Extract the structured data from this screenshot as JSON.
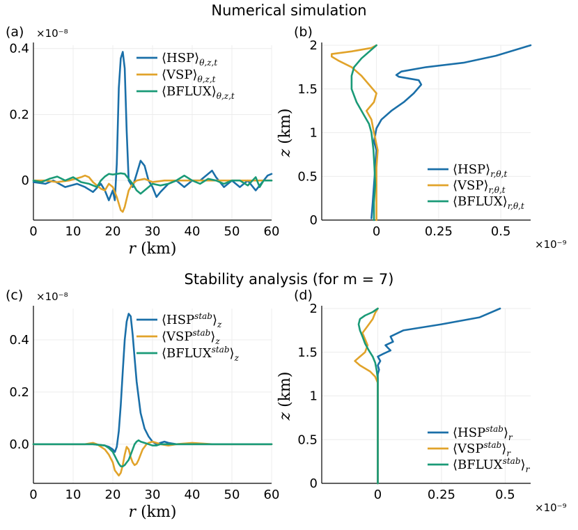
{
  "figure": {
    "top_title": "Numerical simulation",
    "bottom_title": "Stability analysis (for m = 7)"
  },
  "colors": {
    "hsp": "#1a6fa8",
    "vsp": "#e1a32a",
    "bflux": "#1a9a77"
  },
  "chart_data": [
    {
      "panel": "(a)",
      "type": "line",
      "multiplier": "×10⁻⁸",
      "xlabel": "r (km)",
      "ylabel": "",
      "xlim": [
        0,
        60
      ],
      "ylim": [
        -0.12,
        0.41
      ],
      "xticks": [
        0,
        10,
        20,
        30,
        40,
        50,
        60
      ],
      "xtick_labels": [
        "0",
        "10",
        "20",
        "30",
        "40",
        "50",
        "60"
      ],
      "yticks": [
        0,
        0.2,
        0.4
      ],
      "ytick_labels": [
        "0",
        "0.2",
        "0.4"
      ],
      "legend_position": "top-right",
      "series": [
        {
          "name": "⟨HSP⟩θ,z,t",
          "color": "hsp",
          "x": [
            0,
            3,
            5,
            8,
            11,
            13,
            15,
            17,
            18,
            19,
            20,
            20.5,
            21,
            21.5,
            22,
            22.5,
            23,
            23.5,
            24,
            25,
            26,
            27,
            28,
            29,
            30,
            31,
            32,
            34,
            36,
            38,
            40,
            42,
            44,
            45,
            46,
            48,
            50,
            52,
            54,
            56,
            58,
            59,
            60
          ],
          "y": [
            -0.005,
            -0.01,
            0.0,
            -0.02,
            -0.01,
            -0.02,
            -0.035,
            -0.01,
            -0.03,
            -0.06,
            -0.03,
            -0.06,
            0.05,
            0.28,
            0.37,
            0.39,
            0.34,
            0.15,
            0.0,
            -0.02,
            0.02,
            0.06,
            0.045,
            0.0,
            -0.02,
            -0.05,
            -0.035,
            -0.01,
            0.0,
            -0.02,
            0.0,
            0.0,
            0.02,
            0.03,
            0.01,
            -0.02,
            0.0,
            -0.02,
            0.0,
            -0.03,
            0.0,
            0.015,
            0.02
          ]
        },
        {
          "name": "⟨VSP⟩θ,z,t",
          "color": "vsp",
          "x": [
            0,
            3,
            6,
            9,
            12,
            13,
            14,
            15,
            17,
            18,
            19,
            20,
            21,
            22,
            22.5,
            23,
            24,
            25,
            26,
            28,
            30,
            33,
            36,
            40,
            45,
            50,
            55,
            60
          ],
          "y": [
            0.0,
            0.0,
            -0.005,
            0.0,
            0.01,
            0.015,
            0.01,
            -0.005,
            -0.025,
            -0.03,
            -0.01,
            -0.02,
            -0.05,
            -0.09,
            -0.095,
            -0.08,
            -0.03,
            -0.01,
            0.0,
            0.005,
            -0.005,
            0.0,
            0.0,
            0.0,
            0.0,
            0.0,
            0.0,
            0.0
          ]
        },
        {
          "name": "⟨BFLUX⟩θ,z,t",
          "color": "bflux",
          "x": [
            0,
            2,
            4,
            6,
            8,
            10,
            12,
            14,
            16,
            17,
            18,
            19,
            20,
            21,
            22,
            23,
            24,
            25,
            26,
            27,
            28,
            29,
            30,
            32,
            34,
            36,
            38,
            40,
            42,
            44,
            46,
            48,
            50,
            52,
            54,
            56,
            57,
            58,
            60
          ],
          "y": [
            0.0,
            -0.005,
            0.005,
            0.012,
            0.0,
            0.01,
            -0.005,
            -0.01,
            -0.02,
            0.0,
            0.012,
            0.02,
            0.018,
            0.02,
            0.022,
            0.02,
            0.005,
            -0.01,
            -0.03,
            -0.04,
            -0.03,
            -0.02,
            -0.01,
            -0.015,
            -0.01,
            0.0,
            0.015,
            0.0,
            -0.01,
            0.005,
            0.0,
            -0.01,
            0.0,
            0.0,
            -0.015,
            0.01,
            -0.02,
            0.0,
            0.0
          ]
        }
      ]
    },
    {
      "panel": "(b)",
      "type": "line",
      "multiplier": "×10⁻⁹",
      "xlabel": "",
      "ylabel": "z (km)",
      "xlim": [
        -0.22,
        0.62
      ],
      "ylim": [
        0,
        2
      ],
      "xticks": [
        0,
        0.25,
        0.5
      ],
      "xtick_labels": [
        "0",
        "0.25",
        "0.5"
      ],
      "yticks": [
        0,
        0.5,
        1,
        1.5,
        2
      ],
      "ytick_labels": [
        "0",
        "0.5",
        "1",
        "1.5",
        "2"
      ],
      "legend_position": "bottom-right",
      "series": [
        {
          "name": "⟨HSP⟩r,θ,t",
          "color": "hsp",
          "x": [
            -0.02,
            -0.015,
            -0.01,
            -0.005,
            0.0,
            -0.01,
            0.0,
            0.02,
            0.06,
            0.11,
            0.15,
            0.18,
            0.17,
            0.13,
            0.09,
            0.08,
            0.1,
            0.2,
            0.35,
            0.48,
            0.62
          ],
          "y": [
            0.02,
            0.2,
            0.4,
            0.6,
            0.8,
            0.9,
            1.05,
            1.15,
            1.25,
            1.35,
            1.45,
            1.55,
            1.6,
            1.62,
            1.64,
            1.66,
            1.7,
            1.75,
            1.8,
            1.88,
            2.0
          ]
        },
        {
          "name": "⟨VSP⟩r,θ,t",
          "color": "vsp",
          "x": [
            0.0,
            0.0,
            0.0,
            0.0,
            0.005,
            -0.01,
            -0.02,
            -0.04,
            -0.01,
            0.0,
            -0.03,
            -0.06,
            -0.1,
            -0.15,
            -0.18,
            -0.18,
            -0.1,
            -0.02,
            0.0
          ],
          "y": [
            0.0,
            0.2,
            0.4,
            0.6,
            0.8,
            1.0,
            1.15,
            1.25,
            1.35,
            1.45,
            1.55,
            1.65,
            1.75,
            1.82,
            1.87,
            1.9,
            1.93,
            1.97,
            2.0
          ]
        },
        {
          "name": "⟨BFLUX⟩r,θ,t",
          "color": "bflux",
          "x": [
            -0.01,
            -0.01,
            -0.005,
            -0.008,
            -0.012,
            -0.02,
            -0.03,
            -0.05,
            -0.08,
            -0.1,
            -0.1,
            -0.09,
            -0.06,
            -0.02,
            0.0
          ],
          "y": [
            0.0,
            0.2,
            0.4,
            0.6,
            0.8,
            1.0,
            1.1,
            1.2,
            1.35,
            1.5,
            1.65,
            1.75,
            1.85,
            1.95,
            2.0
          ]
        }
      ]
    },
    {
      "panel": "(c)",
      "type": "line",
      "multiplier": "×10⁻⁸",
      "xlabel": "r (km)",
      "ylabel": "",
      "xlim": [
        0,
        60
      ],
      "ylim": [
        -0.15,
        0.52
      ],
      "xticks": [
        0,
        10,
        20,
        30,
        40,
        50,
        60
      ],
      "xtick_labels": [
        "0",
        "10",
        "20",
        "30",
        "40",
        "50",
        "60"
      ],
      "yticks": [
        0,
        0.2,
        0.4
      ],
      "ytick_labels": [
        "0.0",
        "0.2",
        "0.4"
      ],
      "legend_position": "top-right",
      "series": [
        {
          "name": "⟨HSP^stab⟩z",
          "color": "hsp",
          "x": [
            0,
            10,
            15,
            18,
            19,
            20,
            20.5,
            21,
            21.5,
            22,
            22.5,
            23,
            23.5,
            24,
            24.5,
            25,
            25.5,
            26,
            27,
            28,
            29,
            30,
            31,
            32,
            33,
            34,
            36,
            40,
            50,
            60
          ],
          "y": [
            0,
            0,
            0,
            -0.005,
            -0.01,
            -0.02,
            -0.03,
            -0.01,
            0.05,
            0.15,
            0.28,
            0.4,
            0.47,
            0.5,
            0.49,
            0.42,
            0.33,
            0.24,
            0.12,
            0.06,
            0.03,
            0.01,
            0.0,
            0.005,
            0.01,
            0.005,
            0.0,
            0.0,
            0.0,
            0.0
          ]
        },
        {
          "name": "⟨VSP^stab⟩z",
          "color": "vsp",
          "x": [
            0,
            10,
            13,
            15,
            16,
            17,
            18,
            19,
            20,
            20.5,
            21,
            21.5,
            22,
            22.5,
            23,
            23.5,
            24,
            24.5,
            25,
            25.5,
            26,
            26.5,
            27,
            27.5,
            28,
            28.5,
            29,
            30,
            31,
            32,
            34,
            36,
            40,
            45,
            50,
            60
          ],
          "y": [
            0,
            0,
            0.0,
            0.005,
            0.0,
            -0.01,
            -0.02,
            -0.04,
            -0.07,
            -0.1,
            -0.11,
            -0.12,
            -0.11,
            -0.08,
            -0.04,
            -0.01,
            -0.02,
            -0.05,
            -0.07,
            -0.08,
            -0.075,
            -0.06,
            -0.04,
            -0.02,
            -0.01,
            0.0,
            0.005,
            0.01,
            0.005,
            0.0,
            -0.005,
            0.0,
            0.005,
            0.0,
            0.0,
            0.0
          ]
        },
        {
          "name": "⟨BFLUX^stab⟩z",
          "color": "bflux",
          "x": [
            0,
            15,
            18,
            19,
            20,
            20.5,
            21,
            21.5,
            22,
            22.5,
            23,
            23.5,
            24,
            24.5,
            25,
            25.5,
            26,
            26.5,
            27,
            28,
            29,
            30,
            31,
            32,
            34,
            40,
            50,
            60
          ],
          "y": [
            0,
            0,
            -0.005,
            -0.015,
            -0.03,
            -0.045,
            -0.06,
            -0.075,
            -0.085,
            -0.085,
            -0.08,
            -0.07,
            -0.06,
            -0.04,
            -0.02,
            0.0,
            0.01,
            0.015,
            0.01,
            0.005,
            0.0,
            -0.005,
            -0.005,
            0.0,
            0.0,
            0.0,
            0.0,
            0.0
          ]
        }
      ]
    },
    {
      "panel": "(d)",
      "type": "line",
      "multiplier": "×10⁻⁹",
      "xlabel": "",
      "ylabel": "z (km)",
      "xlim": [
        -0.22,
        0.6
      ],
      "ylim": [
        0,
        2
      ],
      "xticks": [
        0,
        0.25,
        0.5
      ],
      "xtick_labels": [
        "0",
        "0.25",
        "0.5"
      ],
      "yticks": [
        0,
        0.5,
        1,
        1.5,
        2
      ],
      "ytick_labels": [
        "0",
        "0.5",
        "1",
        "1.5",
        "2"
      ],
      "legend_position": "bottom-right",
      "series": [
        {
          "name": "⟨HSP^stab⟩r",
          "color": "hsp",
          "x": [
            0.0,
            0.0,
            0.0,
            0.0,
            0.0,
            0.005,
            0.0,
            0.01,
            0.0,
            0.02,
            0.05,
            0.04,
            0.03,
            0.06,
            0.05,
            0.1,
            0.25,
            0.4,
            0.48
          ],
          "y": [
            0.0,
            0.5,
            1.0,
            1.15,
            1.25,
            1.3,
            1.35,
            1.4,
            1.45,
            1.48,
            1.52,
            1.55,
            1.58,
            1.62,
            1.68,
            1.75,
            1.82,
            1.9,
            2.0
          ]
        },
        {
          "name": "⟨VSP^stab⟩r",
          "color": "vsp",
          "x": [
            0.0,
            0.0,
            0.0,
            0.0,
            -0.01,
            -0.03,
            -0.07,
            -0.09,
            -0.07,
            -0.05,
            -0.04,
            -0.05,
            -0.06,
            -0.04,
            -0.02,
            -0.01,
            0.0
          ],
          "y": [
            0.0,
            0.5,
            1.0,
            1.15,
            1.22,
            1.28,
            1.35,
            1.4,
            1.45,
            1.5,
            1.58,
            1.65,
            1.72,
            1.8,
            1.88,
            1.95,
            2.0
          ]
        },
        {
          "name": "⟨BFLUX^stab⟩r",
          "color": "bflux",
          "x": [
            0.0,
            0.0,
            0.0,
            0.0,
            -0.005,
            -0.01,
            -0.02,
            -0.035,
            -0.05,
            -0.06,
            -0.07,
            -0.075,
            -0.07,
            -0.05,
            -0.02,
            0.0
          ],
          "y": [
            0.0,
            0.5,
            1.0,
            1.2,
            1.3,
            1.38,
            1.45,
            1.52,
            1.6,
            1.68,
            1.75,
            1.82,
            1.88,
            1.92,
            1.96,
            2.0
          ]
        }
      ]
    }
  ]
}
